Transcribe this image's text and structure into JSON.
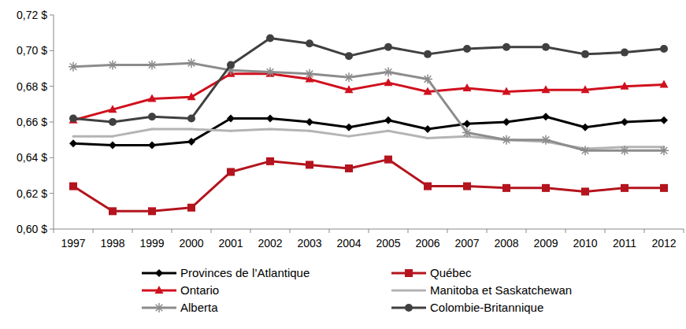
{
  "chart_data": {
    "type": "line",
    "categories": [
      "1997",
      "1998",
      "1999",
      "2000",
      "2001",
      "2002",
      "2003",
      "2004",
      "2005",
      "2006",
      "2007",
      "2008",
      "2009",
      "2010",
      "2011",
      "2012"
    ],
    "series": [
      {
        "name": "Provinces de l’Atlantique",
        "color": "#000000",
        "marker": "diamond",
        "values": [
          0.648,
          0.647,
          0.647,
          0.649,
          0.662,
          0.662,
          0.66,
          0.657,
          0.661,
          0.656,
          0.659,
          0.66,
          0.663,
          0.657,
          0.66,
          0.661
        ]
      },
      {
        "name": "Québec",
        "color": "#b4141e",
        "marker": "square",
        "values": [
          0.624,
          0.61,
          0.61,
          0.612,
          0.632,
          0.638,
          0.636,
          0.634,
          0.639,
          0.624,
          0.624,
          0.623,
          0.623,
          0.621,
          0.623,
          0.623
        ]
      },
      {
        "name": "Ontario",
        "color": "#d0101e",
        "marker": "triangle",
        "values": [
          0.661,
          0.667,
          0.673,
          0.674,
          0.687,
          0.687,
          0.684,
          0.678,
          0.682,
          0.677,
          0.679,
          0.677,
          0.678,
          0.678,
          0.68,
          0.681
        ]
      },
      {
        "name": "Manitoba et Saskatchewan",
        "color": "#b4b4b4",
        "marker": "none",
        "values": [
          0.652,
          0.652,
          0.656,
          0.656,
          0.655,
          0.656,
          0.655,
          0.652,
          0.655,
          0.651,
          0.652,
          0.65,
          0.649,
          0.645,
          0.646,
          0.646
        ]
      },
      {
        "name": "Alberta",
        "color": "#8c8c8c",
        "marker": "asterisk",
        "values": [
          0.691,
          0.692,
          0.692,
          0.693,
          0.689,
          0.688,
          0.687,
          0.685,
          0.688,
          0.684,
          0.654,
          0.65,
          0.65,
          0.644,
          0.644,
          0.644
        ]
      },
      {
        "name": "Colombie-Britannique",
        "color": "#404040",
        "marker": "circle",
        "values": [
          0.662,
          0.66,
          0.663,
          0.662,
          0.692,
          0.707,
          0.704,
          0.697,
          0.702,
          0.698,
          0.701,
          0.702,
          0.702,
          0.698,
          0.699,
          0.701
        ]
      }
    ],
    "ylim": [
      0.6,
      0.72
    ],
    "yticks": [
      {
        "value": 0.6,
        "label": "0,60 $"
      },
      {
        "value": 0.62,
        "label": "0,62 $"
      },
      {
        "value": 0.64,
        "label": "0,64 $"
      },
      {
        "value": 0.66,
        "label": "0,66 $"
      },
      {
        "value": 0.68,
        "label": "0,68 $"
      },
      {
        "value": 0.7,
        "label": "0,70 $"
      },
      {
        "value": 0.72,
        "label": "0,72 $"
      }
    ],
    "grid": false,
    "legend": "bottom"
  }
}
